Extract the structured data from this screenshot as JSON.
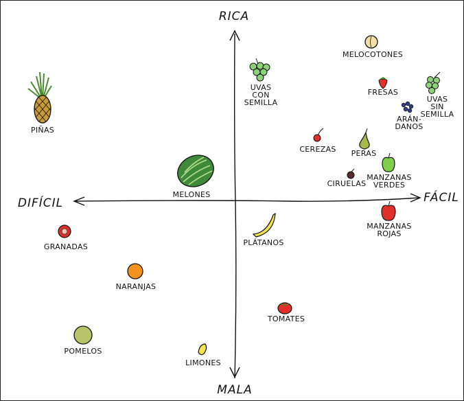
{
  "axes": {
    "top": "RICA",
    "bottom": "MALA",
    "left": "DIFÍCIL",
    "right": "FÁCIL"
  },
  "fruits": [
    {
      "id": "pinas",
      "lines": [
        "PIÑAS"
      ]
    },
    {
      "id": "uvas-con-semilla",
      "lines": [
        "UVAS",
        "CON",
        "SEMILLA"
      ]
    },
    {
      "id": "melocotones",
      "lines": [
        "MELOCOTONES"
      ]
    },
    {
      "id": "fresas",
      "lines": [
        "FRESAS"
      ]
    },
    {
      "id": "uvas-sin-semilla",
      "lines": [
        "UVAS",
        "SIN",
        "SEMILLA"
      ]
    },
    {
      "id": "arandanos",
      "lines": [
        "ARÁN-",
        "DANOS"
      ]
    },
    {
      "id": "cerezas",
      "lines": [
        "CEREZAS"
      ]
    },
    {
      "id": "peras",
      "lines": [
        "PERAS"
      ]
    },
    {
      "id": "manzanas-verdes",
      "lines": [
        "MANZANAS",
        "VERDES"
      ]
    },
    {
      "id": "ciruelas",
      "lines": [
        "CIRUELAS"
      ]
    },
    {
      "id": "melones",
      "lines": [
        "MELONES"
      ]
    },
    {
      "id": "manzanas-rojas",
      "lines": [
        "MANZANAS",
        "ROJAS"
      ]
    },
    {
      "id": "platanos",
      "lines": [
        "PLÁTANOS"
      ]
    },
    {
      "id": "granadas",
      "lines": [
        "GRANADAS"
      ]
    },
    {
      "id": "naranjas",
      "lines": [
        "NARANJAS"
      ]
    },
    {
      "id": "tomates",
      "lines": [
        "TOMATES"
      ]
    },
    {
      "id": "pomelos",
      "lines": [
        "POMELOS"
      ]
    },
    {
      "id": "limones",
      "lines": [
        "LIMONES"
      ]
    }
  ]
}
